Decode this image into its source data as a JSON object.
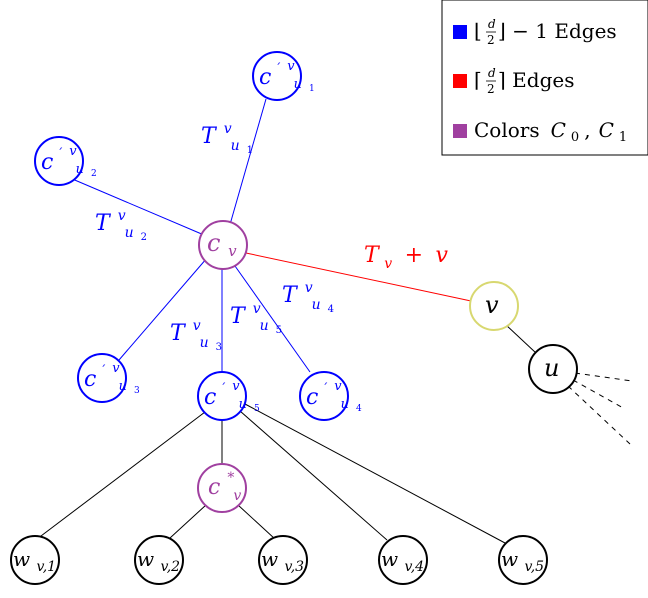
{
  "legend": {
    "items": [
      {
        "color": "#0000ff",
        "label_pre": "⌊",
        "frac_num": "d",
        "frac_den": "2",
        "label_post": "⌋ − 1 Edges"
      },
      {
        "color": "#ff0000",
        "label_pre": "⌈",
        "frac_num": "d",
        "frac_den": "2",
        "label_post": "⌉ Edges"
      },
      {
        "color": "#a040a0",
        "label_text": "Colors",
        "label_math": "C",
        "sub_0": "0",
        "comma": ",",
        "label_math2": "C",
        "sub_1": "1"
      }
    ]
  },
  "nodes": {
    "c_v": {
      "main": "c",
      "sub": "v"
    },
    "c_star": {
      "main": "c",
      "sup": "*",
      "sub": "v"
    },
    "v": {
      "main": "v"
    },
    "u": {
      "main": "u"
    },
    "cp_u1": {
      "main": "c",
      "prime": "′",
      "sup": "v",
      "sub": "u",
      "subsub": "1"
    },
    "cp_u2": {
      "main": "c",
      "prime": "′",
      "sup": "v",
      "sub": "u",
      "subsub": "2"
    },
    "cp_u3": {
      "main": "c",
      "prime": "′",
      "sup": "v",
      "sub": "u",
      "subsub": "3"
    },
    "cp_u4": {
      "main": "c",
      "prime": "′",
      "sup": "v",
      "sub": "u",
      "subsub": "4"
    },
    "cp_u5": {
      "main": "c",
      "prime": "′",
      "sup": "v",
      "sub": "u",
      "subsub": "5"
    },
    "w1": {
      "main": "w",
      "sub": "v,1"
    },
    "w2": {
      "main": "w",
      "sub": "v,2"
    },
    "w3": {
      "main": "w",
      "sub": "v,3"
    },
    "w4": {
      "main": "w",
      "sub": "v,4"
    },
    "w5": {
      "main": "w",
      "sub": "v,5"
    }
  },
  "edge_labels": {
    "t1": {
      "main": "T",
      "sup": "v",
      "sub": "u",
      "subsub": "1"
    },
    "t2": {
      "main": "T",
      "sup": "v",
      "sub": "u",
      "subsub": "2"
    },
    "t3": {
      "main": "T",
      "sup": "v",
      "sub": "u",
      "subsub": "3"
    },
    "t4": {
      "main": "T",
      "sup": "v",
      "sub": "u",
      "subsub": "4"
    },
    "t5": {
      "main": "T",
      "sup": "v",
      "sub": "u",
      "subsub": "5"
    },
    "tv": {
      "main": "T",
      "sub": "v",
      "plus": " + ",
      "tail": "v"
    }
  },
  "colors": {
    "blue": "#0000ff",
    "red": "#ff0000",
    "purple": "#a040a0",
    "yellow": "#d8d870",
    "black": "#000000"
  }
}
